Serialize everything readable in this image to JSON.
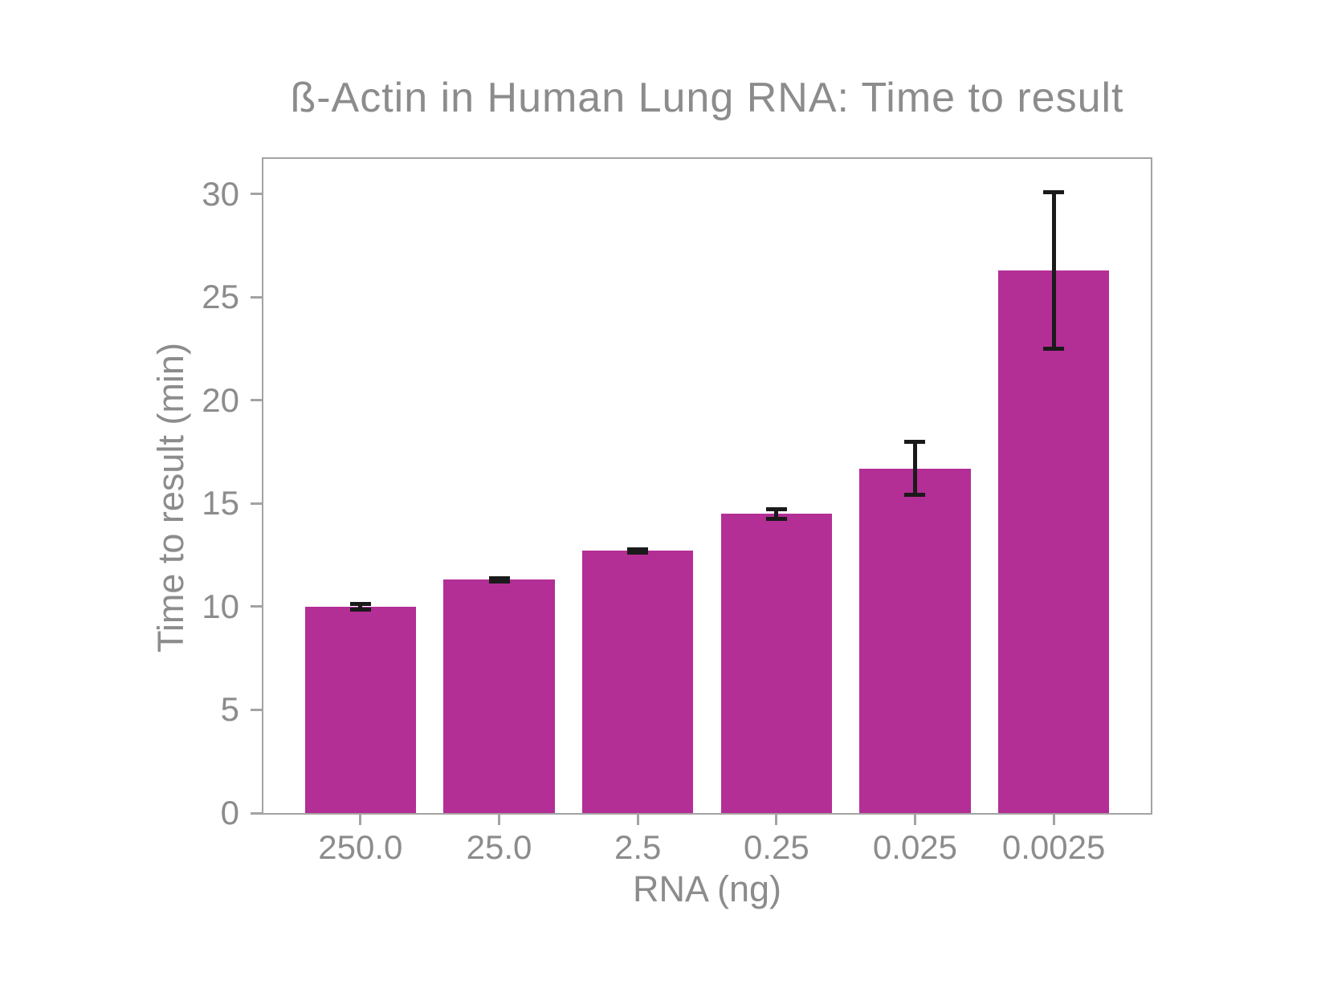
{
  "chart_data": {
    "type": "bar",
    "title": "ß-Actin in Human Lung RNA: Time to result",
    "xlabel": "RNA (ng)",
    "ylabel": "Time to result (min)",
    "categories": [
      "250.0",
      "25.0",
      "2.5",
      "0.25",
      "0.025",
      "0.0025"
    ],
    "values": [
      10.0,
      11.3,
      12.7,
      14.5,
      16.7,
      26.3
    ],
    "errors": [
      0.15,
      0.08,
      0.08,
      0.25,
      1.3,
      3.8
    ],
    "yticks": [
      0,
      5,
      10,
      15,
      20,
      25,
      30
    ],
    "ylim": [
      0,
      31.7
    ],
    "grid": false,
    "legend": "none",
    "colors": {
      "bar": "#b32e95",
      "error": "#1a1a1a",
      "axis": "#a3a3a3",
      "text": "#8c8c8c"
    }
  }
}
